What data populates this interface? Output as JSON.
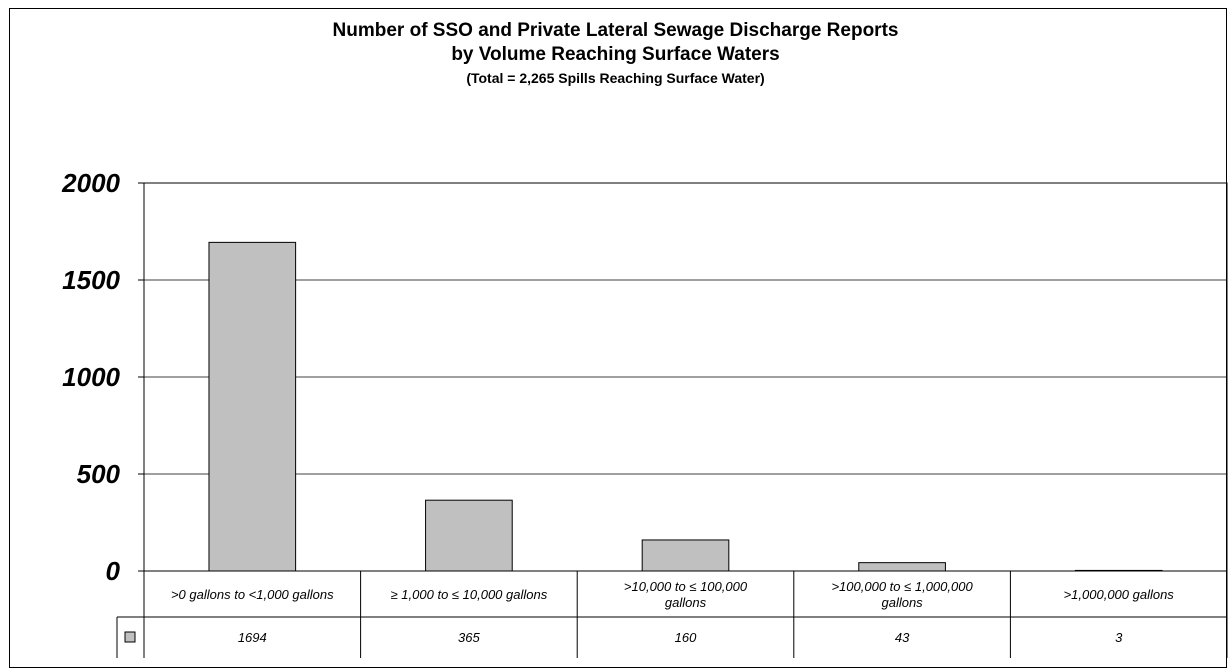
{
  "chart_data": {
    "type": "bar",
    "title": "Number of SSO and Private Lateral Sewage Discharge Reports",
    "title_line2": "by Volume Reaching Surface Waters",
    "subtitle": "(Total = 2,265 Spills Reaching Surface Water)",
    "categories": [
      [
        ">0 gallons to <1,000 gallons"
      ],
      [
        "≥ 1,000 to ≤ 10,000 gallons"
      ],
      [
        ">10,000 to ≤ 100,000",
        "gallons"
      ],
      [
        ">100,000 to ≤ 1,000,000",
        "gallons"
      ],
      [
        ">1,000,000 gallons"
      ]
    ],
    "values": [
      1694,
      365,
      160,
      43,
      3
    ],
    "ylim": [
      0,
      2000
    ],
    "yticks": [
      "0",
      "500",
      "1000",
      "1500",
      "2000"
    ],
    "grid": true,
    "legend": "data-table",
    "colors": {
      "bar": "#c0c0c0",
      "bar_stroke": "#000000",
      "grid": "#000000"
    }
  }
}
